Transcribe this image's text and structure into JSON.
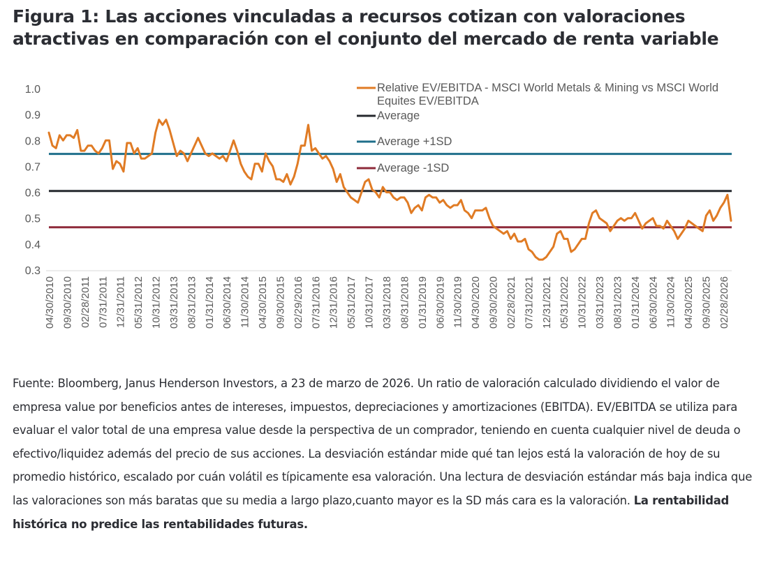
{
  "title": {
    "line1": "Figura 1: Las acciones vinculadas a recursos cotizan con valoraciones",
    "line2": "atractivas en comparación con el conjunto del mercado de renta variable"
  },
  "caption": {
    "text": "Fuente: Bloomberg, Janus Henderson Investors, a 23 de marzo de 2026. Un ratio de valoración calculado dividiendo el valor de empresa value por beneficios antes de intereses, impuestos, depreciaciones y amortizaciones (EBITDA). EV/EBITDA se utiliza para evaluar el valor total de una empresa value desde la perspectiva de un comprador, teniendo en cuenta cualquier nivel de deuda o efectivo/liquidez además del precio de sus acciones. La desviación estándar mide qué tan lejos está la valoración de hoy de su promedio histórico, escalado por cuán volátil es típicamente esa valoración. Una lectura de desviación estándar más baja indica que las valoraciones son más baratas que su media a largo plazo,cuanto mayor es la SD más cara es la valoración.",
    "bold_text": "La rentabilidad histórica no predice las rentabilidades futuras."
  },
  "chart_data": {
    "type": "line",
    "title": "",
    "xlabel": "",
    "ylabel": "",
    "ylim": [
      0.3,
      1.0
    ],
    "yticks": [
      "1.0",
      "0.9",
      "0.8",
      "0.7",
      "0.6",
      "0.5",
      "0.4",
      "0.3"
    ],
    "ytick_values": [
      1.0,
      0.9,
      0.8,
      0.7,
      0.6,
      0.5,
      0.4,
      0.3
    ],
    "grid": false,
    "legend_position": "top-right",
    "x_start": "2010-04",
    "x_end": "2026-03",
    "xticks": [
      "04/30/2010",
      "09/30/2010",
      "02/28/2011",
      "07/31/2011",
      "12/31/2011",
      "05/31/2012",
      "10/31/2012",
      "03/31/2013",
      "08/31/2013",
      "01/31/2014",
      "06/30/2014",
      "11/30/2014",
      "04/30/2015",
      "09/30/2015",
      "02/29/2016",
      "07/31/2016",
      "12/31/2016",
      "05/31/2017",
      "10/31/2017",
      "03/31/2018",
      "08/31/2018",
      "01/31/2019",
      "06/30/2019",
      "11/30/2019",
      "04/30/2020",
      "09/30/2020",
      "02/28/2021",
      "07/31/2021",
      "12/31/2021",
      "05/31/2022",
      "10/31/2022",
      "03/31/2023",
      "08/31/2023",
      "01/31/2024",
      "06/30/2024",
      "11/30/2024",
      "04/30/2025",
      "09/30/2025",
      "02/28/2026"
    ],
    "series": [
      {
        "name": "Relative EV/EBITDA - MSCI World Metals & Mining vs MSCI World Equites EV/EBITDA",
        "color": "#e07b24",
        "kind": "line",
        "values": [
          0.83,
          0.78,
          0.77,
          0.82,
          0.8,
          0.82,
          0.82,
          0.81,
          0.84,
          0.76,
          0.76,
          0.78,
          0.78,
          0.76,
          0.75,
          0.77,
          0.8,
          0.8,
          0.69,
          0.72,
          0.71,
          0.68,
          0.79,
          0.79,
          0.75,
          0.77,
          0.73,
          0.73,
          0.74,
          0.75,
          0.83,
          0.88,
          0.86,
          0.88,
          0.84,
          0.79,
          0.74,
          0.76,
          0.75,
          0.72,
          0.75,
          0.78,
          0.81,
          0.78,
          0.75,
          0.74,
          0.75,
          0.74,
          0.73,
          0.74,
          0.72,
          0.76,
          0.8,
          0.76,
          0.71,
          0.68,
          0.66,
          0.65,
          0.71,
          0.71,
          0.68,
          0.75,
          0.72,
          0.7,
          0.65,
          0.65,
          0.64,
          0.67,
          0.63,
          0.66,
          0.71,
          0.78,
          0.78,
          0.86,
          0.76,
          0.77,
          0.75,
          0.73,
          0.74,
          0.72,
          0.69,
          0.64,
          0.67,
          0.62,
          0.6,
          0.58,
          0.57,
          0.56,
          0.6,
          0.64,
          0.65,
          0.61,
          0.6,
          0.58,
          0.62,
          0.6,
          0.6,
          0.58,
          0.57,
          0.58,
          0.58,
          0.56,
          0.52,
          0.54,
          0.55,
          0.53,
          0.58,
          0.59,
          0.58,
          0.58,
          0.56,
          0.57,
          0.55,
          0.54,
          0.55,
          0.55,
          0.57,
          0.53,
          0.52,
          0.5,
          0.53,
          0.53,
          0.53,
          0.54,
          0.5,
          0.47,
          0.46,
          0.45,
          0.44,
          0.45,
          0.42,
          0.44,
          0.41,
          0.41,
          0.42,
          0.38,
          0.37,
          0.35,
          0.34,
          0.34,
          0.35,
          0.37,
          0.39,
          0.44,
          0.45,
          0.42,
          0.42,
          0.37,
          0.38,
          0.4,
          0.42,
          0.42,
          0.48,
          0.52,
          0.53,
          0.5,
          0.49,
          0.48,
          0.45,
          0.47,
          0.49,
          0.5,
          0.49,
          0.5,
          0.5,
          0.52,
          0.49,
          0.46,
          0.48,
          0.49,
          0.5,
          0.47,
          0.47,
          0.46,
          0.49,
          0.47,
          0.45,
          0.42,
          0.44,
          0.46,
          0.49,
          0.48,
          0.47,
          0.46,
          0.45,
          0.51,
          0.53,
          0.49,
          0.51,
          0.54,
          0.56,
          0.59,
          0.49
        ]
      },
      {
        "name": "Average",
        "color": "#25282e",
        "kind": "hline",
        "value": 0.605
      },
      {
        "name": "Average +1SD",
        "color": "#1f6f8b",
        "kind": "hline",
        "value": 0.748
      },
      {
        "name": "Average -1SD",
        "color": "#8e2a3a",
        "kind": "hline",
        "value": 0.465
      }
    ],
    "legend": [
      {
        "label_lines": [
          "Relative EV/EBITDA - MSCI World Metals & Mining vs MSCI World",
          "Equites EV/EBITDA"
        ],
        "color": "#e07b24"
      },
      {
        "label_lines": [
          "Average"
        ],
        "color": "#25282e"
      },
      {
        "label_lines": [
          "Average +1SD"
        ],
        "color": "#1f6f8b"
      },
      {
        "label_lines": [
          "Average -1SD"
        ],
        "color": "#8e2a3a"
      }
    ]
  }
}
